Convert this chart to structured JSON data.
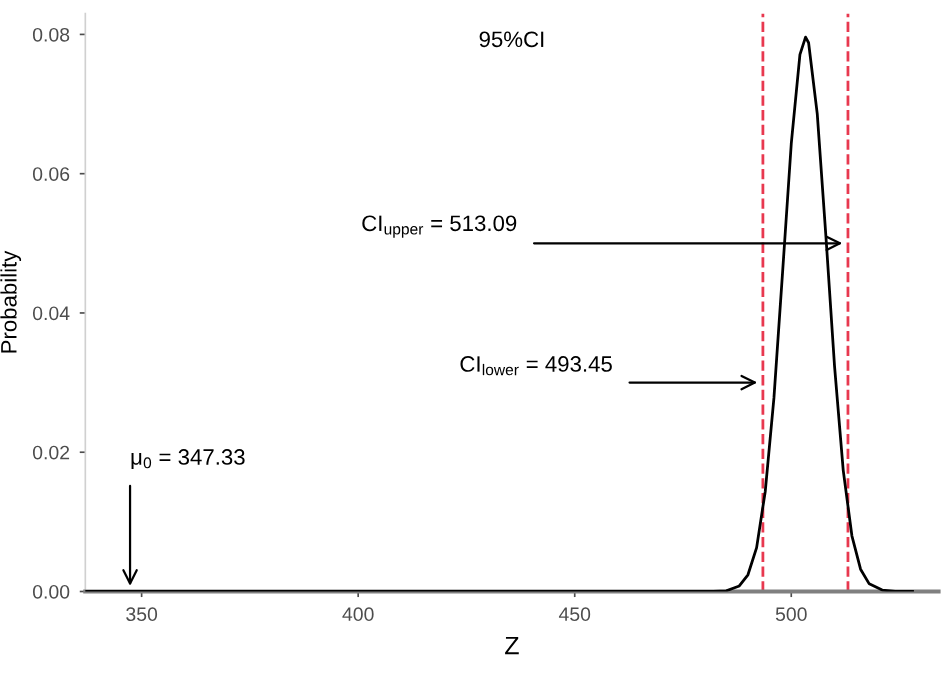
{
  "chart_data": {
    "type": "line",
    "title": "95%CI",
    "xlabel": "Z",
    "ylabel": "Probability",
    "x": [
      337,
      347.33,
      478,
      482,
      485,
      488,
      490,
      492,
      494,
      496,
      498,
      500,
      502,
      503.3,
      504,
      506,
      508,
      510,
      512,
      514,
      516,
      518,
      521,
      524,
      528
    ],
    "series": [
      {
        "color": "#000000",
        "values": [
          0,
          0,
          0,
          0,
          0.0001,
          0.0008,
          0.0024,
          0.0063,
          0.0144,
          0.0278,
          0.0459,
          0.0643,
          0.0771,
          0.0796,
          0.0788,
          0.0686,
          0.051,
          0.0323,
          0.0174,
          0.008,
          0.0032,
          0.0011,
          0.0002,
          0,
          0
        ]
      }
    ],
    "xlim": [
      337,
      534
    ],
    "ylim": [
      0,
      0.083
    ],
    "xticks": [
      350,
      400,
      450,
      500
    ],
    "yticks": [
      {
        "value": 0,
        "label": "0.00"
      },
      {
        "value": 0.02,
        "label": "0.02"
      },
      {
        "value": 0.04,
        "label": "0.04"
      },
      {
        "value": 0.06,
        "label": "0.06"
      },
      {
        "value": 0.08,
        "label": "0.08"
      }
    ],
    "ref_lines": [
      {
        "axis": "x",
        "value": 493.45,
        "color": "#e8384f",
        "line_style": "dashed"
      },
      {
        "axis": "x",
        "value": 513.09,
        "color": "#e8384f",
        "line_style": "dashed"
      }
    ],
    "annotations": [
      {
        "text": "CI$_{upper}$ = 513.09",
        "x": 513.09,
        "y": 0.05
      },
      {
        "text": "CI$_{lower}$ = 493.45",
        "x": 493.45,
        "y": 0.03
      },
      {
        "text": "μ$_{0}$ = 347.33",
        "x": 347.33,
        "y": 0
      }
    ],
    "grid": false,
    "marker": "none",
    "line_style": "solid"
  }
}
